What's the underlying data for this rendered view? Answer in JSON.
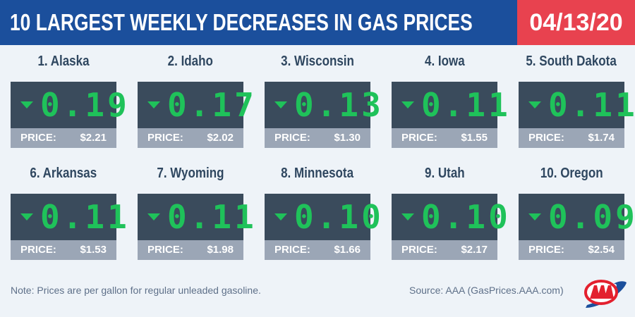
{
  "header": {
    "title": "10 LARGEST WEEKLY DECREASES IN GAS PRICES",
    "date": "04/13/20"
  },
  "price_label": "PRICE:",
  "states": [
    {
      "name": "1. Alaska",
      "change": "0.19",
      "price": "$2.21"
    },
    {
      "name": "2. Idaho",
      "change": "0.17",
      "price": "$2.02"
    },
    {
      "name": "3. Wisconsin",
      "change": "0.13",
      "price": "$1.30"
    },
    {
      "name": "4. Iowa",
      "change": "0.11",
      "price": "$1.55"
    },
    {
      "name": "5. South Dakota",
      "change": "0.11",
      "price": "$1.74"
    },
    {
      "name": "6. Arkansas",
      "change": "0.11",
      "price": "$1.53"
    },
    {
      "name": "7. Wyoming",
      "change": "0.11",
      "price": "$1.98"
    },
    {
      "name": "8. Minnesota",
      "change": "0.10",
      "price": "$1.66"
    },
    {
      "name": "9. Utah",
      "change": "0.10",
      "price": "$2.17"
    },
    {
      "name": "10. Oregon",
      "change": "0.09",
      "price": "$2.54"
    }
  ],
  "footer": {
    "note": "Note: Prices are per gallon for regular unleaded gasoline.",
    "source": "Source: AAA (GasPrices.AAA.com)",
    "logo_text": "AAA"
  },
  "colors": {
    "header_blue": "#1b4f9c",
    "date_red": "#e8424f",
    "digit_green": "#1fc25a"
  }
}
